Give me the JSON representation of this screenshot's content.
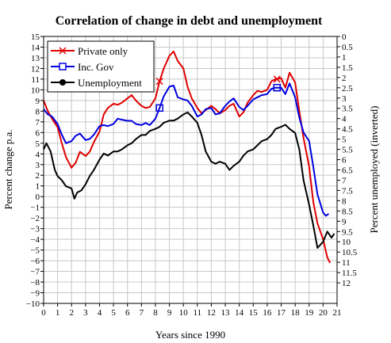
{
  "chart_data": {
    "type": "line",
    "title": "Correlation of change in debt and unemployment",
    "xlabel": "Years since 1990",
    "ylabel_left": "Percent change p.a.",
    "ylabel_right": "Percent unemployed (inverted)",
    "xlim": [
      0,
      21
    ],
    "ylim_left": [
      -10,
      15
    ],
    "ylim_right": [
      13,
      0
    ],
    "right_axis_inverted": true,
    "x_ticks": [
      0,
      1,
      2,
      3,
      4,
      5,
      6,
      7,
      8,
      9,
      10,
      11,
      12,
      13,
      14,
      15,
      16,
      17,
      18,
      19,
      20,
      21
    ],
    "y_ticks_left": [
      -10,
      -9,
      -8,
      -7,
      -6,
      -5,
      -4,
      -3,
      -2,
      -1,
      0,
      1,
      2,
      3,
      4,
      5,
      6,
      7,
      8,
      9,
      10,
      11,
      12,
      13,
      14,
      15
    ],
    "y_ticks_right": [
      0,
      0.5,
      1,
      1.5,
      2,
      2.5,
      3,
      3.5,
      4,
      4.5,
      5,
      5.5,
      6,
      6.5,
      7,
      7.5,
      8,
      8.5,
      9,
      9.5,
      10,
      10.5,
      11,
      11.5,
      12
    ],
    "grid": true,
    "legend_position": "top-left",
    "legend": [
      "Private only",
      "Inc. Gov",
      "Unemployment"
    ],
    "series": [
      {
        "name": "Private only",
        "color": "#e00000",
        "marker": "x",
        "axis": "left",
        "marker_points": [
          [
            8.3,
            10.8
          ],
          [
            16.7,
            11.0
          ]
        ],
        "x": [
          0,
          0.3,
          0.6,
          1,
          1.3,
          1.6,
          2,
          2.3,
          2.6,
          3,
          3.3,
          3.6,
          4,
          4.3,
          4.6,
          5,
          5.3,
          5.6,
          6,
          6.3,
          6.6,
          7,
          7.3,
          7.6,
          8,
          8.3,
          8.6,
          9,
          9.3,
          9.6,
          10,
          10.3,
          10.6,
          11,
          11.3,
          11.6,
          12,
          12.3,
          12.6,
          13,
          13.3,
          13.6,
          14,
          14.3,
          14.6,
          15,
          15.3,
          15.6,
          16,
          16.3,
          16.6,
          17,
          17.3,
          17.6,
          18,
          18.3,
          18.6,
          19,
          19.3,
          19.6,
          20,
          20.3,
          20.5
        ],
        "y": [
          9,
          8,
          7.3,
          6.5,
          5,
          3.7,
          2.7,
          3.2,
          4.2,
          3.8,
          4.2,
          5.1,
          6.1,
          7.7,
          8.3,
          8.7,
          8.6,
          8.8,
          9.2,
          9.5,
          9,
          8.5,
          8.3,
          8.4,
          9.2,
          10.8,
          12,
          13.2,
          13.6,
          12.7,
          12,
          10.3,
          9.2,
          8.3,
          7.8,
          8.1,
          8.5,
          8.2,
          7.8,
          8.1,
          8.5,
          8.7,
          7.5,
          7.9,
          8.8,
          9.5,
          9.9,
          9.8,
          10,
          10.8,
          11,
          11.1,
          10.2,
          11.6,
          10.7,
          8,
          5.5,
          2.8,
          -0.5,
          -2.5,
          -4,
          -5.7,
          -6.2
        ]
      },
      {
        "name": "Inc. Gov",
        "color": "#0000e0",
        "marker": "square",
        "axis": "left",
        "marker_points": [
          [
            8.3,
            8.3
          ],
          [
            16.7,
            10.2
          ]
        ],
        "x": [
          0,
          0.3,
          0.6,
          1,
          1.3,
          1.6,
          2,
          2.3,
          2.6,
          3,
          3.3,
          3.6,
          4,
          4.3,
          4.6,
          5,
          5.3,
          5.6,
          6,
          6.3,
          6.6,
          7,
          7.3,
          7.6,
          8,
          8.3,
          8.6,
          9,
          9.3,
          9.6,
          10,
          10.3,
          10.6,
          11,
          11.3,
          11.6,
          12,
          12.3,
          12.6,
          13,
          13.3,
          13.6,
          14,
          14.3,
          14.6,
          15,
          15.3,
          15.6,
          16,
          16.3,
          16.6,
          17,
          17.3,
          17.6,
          18,
          18.3,
          18.6,
          19,
          19.3,
          19.6,
          20,
          20.2,
          20.4
        ],
        "y": [
          8.2,
          7.7,
          7.5,
          6.8,
          5.8,
          5,
          5.2,
          5.7,
          5.9,
          5.3,
          5.4,
          5.8,
          6.6,
          6.7,
          6.6,
          6.8,
          7.3,
          7.2,
          7.1,
          7.1,
          6.8,
          6.7,
          6.9,
          6.7,
          7.3,
          8.3,
          9.4,
          10.3,
          10.4,
          9.3,
          9.1,
          9,
          8.5,
          7.5,
          7.7,
          8.2,
          8.3,
          7.7,
          7.8,
          8.5,
          8.9,
          9.2,
          8.4,
          8.1,
          8.5,
          9.1,
          9.3,
          9.5,
          9.6,
          10.1,
          10.2,
          10.2,
          9.6,
          10.6,
          9.3,
          7.4,
          6,
          5.2,
          2.8,
          0.2,
          -1.5,
          -1.8,
          -1.6
        ]
      },
      {
        "name": "Unemployment",
        "color": "#000000",
        "marker": "circle",
        "axis": "right",
        "x": [
          0,
          0.2,
          0.5,
          0.8,
          1,
          1.3,
          1.6,
          2,
          2.2,
          2.4,
          2.7,
          3,
          3.3,
          3.6,
          4,
          4.3,
          4.6,
          5,
          5.3,
          5.6,
          6,
          6.3,
          6.6,
          7,
          7.3,
          7.6,
          8,
          8.3,
          8.6,
          9,
          9.3,
          9.6,
          10,
          10.3,
          10.6,
          11,
          11.3,
          11.6,
          12,
          12.3,
          12.6,
          13,
          13.3,
          13.6,
          14,
          14.3,
          14.6,
          15,
          15.3,
          15.6,
          16,
          16.3,
          16.6,
          17,
          17.3,
          17.6,
          18,
          18.3,
          18.6,
          19,
          19.3,
          19.6,
          20,
          20.3,
          20.6,
          20.8
        ],
        "y": [
          5.5,
          5.2,
          5.6,
          6.5,
          6.8,
          7,
          7.3,
          7.4,
          7.9,
          7.6,
          7.5,
          7.2,
          6.8,
          6.5,
          6,
          5.7,
          5.8,
          5.6,
          5.6,
          5.5,
          5.3,
          5.2,
          5,
          4.8,
          4.8,
          4.6,
          4.5,
          4.4,
          4.2,
          4.1,
          4.1,
          4,
          3.8,
          3.7,
          3.9,
          4.2,
          4.8,
          5.6,
          6.1,
          6.2,
          6.1,
          6.2,
          6.5,
          6.3,
          6.1,
          5.8,
          5.6,
          5.5,
          5.3,
          5.1,
          5,
          4.8,
          4.5,
          4.4,
          4.3,
          4.5,
          4.7,
          5.5,
          7,
          8.2,
          9.2,
          10.3,
          10,
          9.5,
          9.8,
          9.6
        ]
      }
    ]
  }
}
